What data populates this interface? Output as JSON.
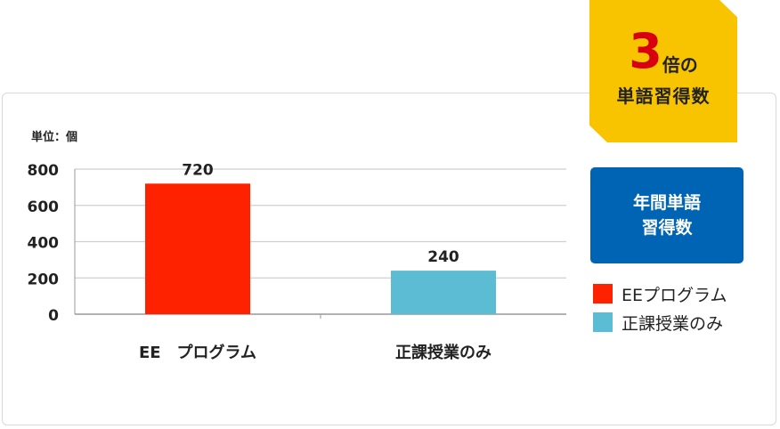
{
  "badge": {
    "multiplier": "3",
    "suffix": "倍の",
    "caption": "単語習得数"
  },
  "infobox": {
    "line1": "年間単語",
    "line2": "習得数"
  },
  "legend": [
    {
      "label": "EEプログラム",
      "color": "#ff2200"
    },
    {
      "label": "正課授業のみ",
      "color": "#5bbcd4"
    }
  ],
  "chart_data": {
    "type": "bar",
    "unit_label": "単位：個",
    "categories": [
      "EE　プログラム",
      "正課授業のみ"
    ],
    "values": [
      720,
      240
    ],
    "colors": [
      "#ff2200",
      "#5bbcd4"
    ],
    "ylim": [
      0,
      800
    ],
    "yticks": [
      "0",
      "200",
      "400",
      "600",
      "800"
    ],
    "data_labels": [
      "720",
      "240"
    ],
    "grid": true
  }
}
